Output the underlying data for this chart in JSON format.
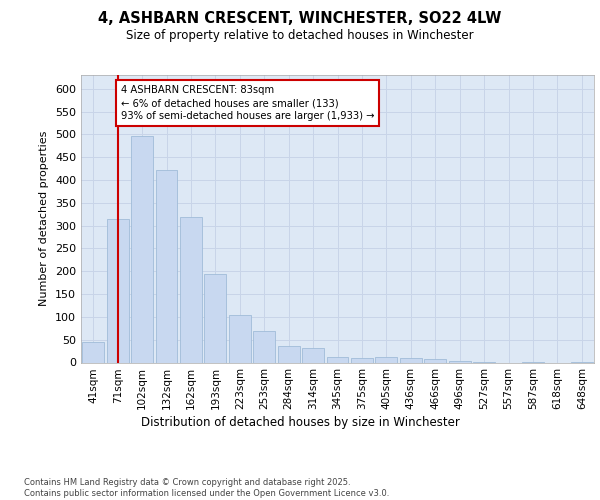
{
  "title_line1": "4, ASHBARN CRESCENT, WINCHESTER, SO22 4LW",
  "title_line2": "Size of property relative to detached houses in Winchester",
  "xlabel": "Distribution of detached houses by size in Winchester",
  "ylabel": "Number of detached properties",
  "categories": [
    "41sqm",
    "71sqm",
    "102sqm",
    "132sqm",
    "162sqm",
    "193sqm",
    "223sqm",
    "253sqm",
    "284sqm",
    "314sqm",
    "345sqm",
    "375sqm",
    "405sqm",
    "436sqm",
    "466sqm",
    "496sqm",
    "527sqm",
    "557sqm",
    "587sqm",
    "618sqm",
    "648sqm"
  ],
  "values": [
    46,
    314,
    497,
    421,
    318,
    193,
    105,
    70,
    37,
    31,
    12,
    10,
    11,
    10,
    7,
    4,
    1,
    0,
    1,
    0,
    2
  ],
  "bar_color": "#c8d8f0",
  "bar_edge_color": "#a0bcd8",
  "grid_color": "#c8d4e8",
  "background_color": "#dde8f5",
  "vline_x_idx": 1,
  "vline_color": "#cc0000",
  "annotation_text": "4 ASHBARN CRESCENT: 83sqm\n← 6% of detached houses are smaller (133)\n93% of semi-detached houses are larger (1,933) →",
  "annotation_box_facecolor": "#ffffff",
  "annotation_box_edgecolor": "#cc0000",
  "footnote": "Contains HM Land Registry data © Crown copyright and database right 2025.\nContains public sector information licensed under the Open Government Licence v3.0.",
  "ylim": [
    0,
    630
  ],
  "yticks": [
    0,
    50,
    100,
    150,
    200,
    250,
    300,
    350,
    400,
    450,
    500,
    550,
    600
  ]
}
